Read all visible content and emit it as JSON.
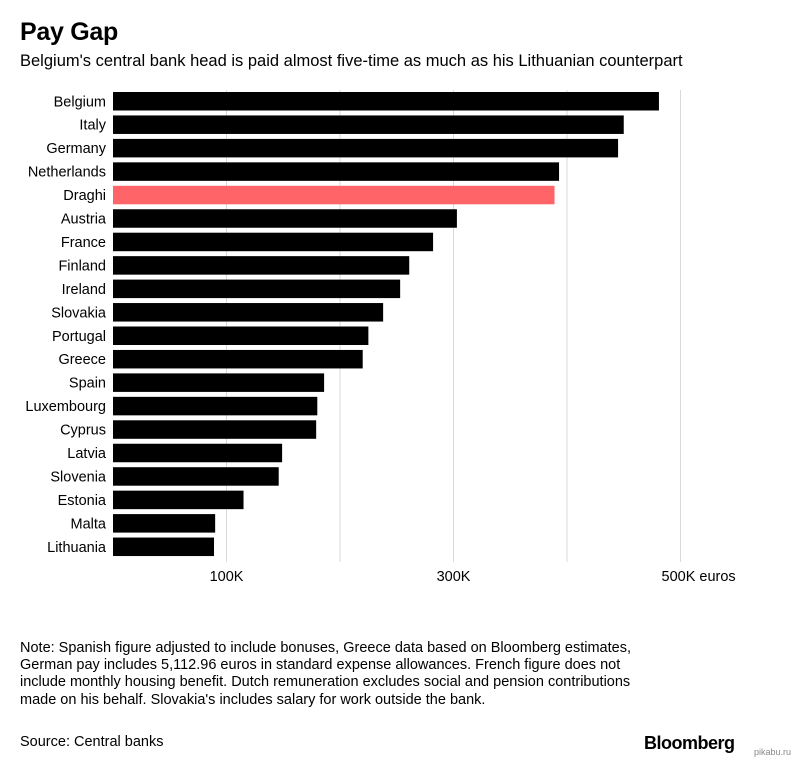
{
  "title": "Pay Gap",
  "subtitle": "Belgium's central bank head is paid almost five-time as much as his Lithuanian counterpart",
  "note": "Note: Spanish figure adjusted to include bonuses, Greece data based on Bloomberg estimates, German pay includes 5,112.96 euros in standard expense allowances. French figure does not include monthly housing benefit. Dutch remuneration excludes social and pension contributions made on his behalf. Slovakia's includes salary for work outside the bank.",
  "source": "Source: Central banks",
  "brand": "Bloomberg",
  "watermark": "pikabu.ru",
  "colors": {
    "bar": "#000000",
    "highlight": "#ff6469",
    "grid": "#d9d9d9"
  },
  "chart_data": {
    "type": "bar",
    "orientation": "horizontal",
    "title": "Pay Gap",
    "subtitle": "Belgium's central bank head is paid almost five-time as much as his Lithuanian counterpart",
    "xlabel": "",
    "ylabel": "",
    "xlim": [
      0,
      500000
    ],
    "ticks": [
      {
        "value": 100000,
        "label": "100K"
      },
      {
        "value": 300000,
        "label": "300K"
      },
      {
        "value": 500000,
        "label": "500K euros"
      }
    ],
    "grid_values": [
      100000,
      200000,
      300000,
      400000,
      500000
    ],
    "grid": true,
    "highlight": "Draghi",
    "categories": [
      "Belgium",
      "Italy",
      "Germany",
      "Netherlands",
      "Draghi",
      "Austria",
      "France",
      "Finland",
      "Ireland",
      "Slovakia",
      "Portugal",
      "Greece",
      "Spain",
      "Luxembourg",
      "Cyprus",
      "Latvia",
      "Slovenia",
      "Estonia",
      "Malta",
      "Lithuania"
    ],
    "values": [
      481000,
      450000,
      445000,
      393000,
      389000,
      303000,
      282000,
      261000,
      253000,
      238000,
      225000,
      220000,
      186000,
      180000,
      179000,
      149000,
      146000,
      115000,
      90000,
      89000
    ]
  }
}
